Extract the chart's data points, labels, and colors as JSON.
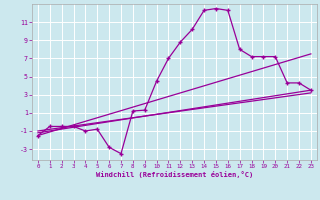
{
  "xlabel": "Windchill (Refroidissement éolien,°C)",
  "bg_color": "#cce8ee",
  "line_color": "#990099",
  "xlim": [
    -0.5,
    23.5
  ],
  "ylim": [
    -4.2,
    13.0
  ],
  "yticks": [
    -3,
    -1,
    1,
    3,
    5,
    7,
    9,
    11
  ],
  "xticks": [
    0,
    1,
    2,
    3,
    4,
    5,
    6,
    7,
    8,
    9,
    10,
    11,
    12,
    13,
    14,
    15,
    16,
    17,
    18,
    19,
    20,
    21,
    22,
    23
  ],
  "main_x": [
    0,
    1,
    2,
    3,
    4,
    5,
    6,
    7,
    8,
    9,
    10,
    11,
    12,
    13,
    14,
    15,
    16,
    17,
    18,
    19,
    20,
    21,
    22,
    23
  ],
  "main_y": [
    -1.5,
    -0.5,
    -0.5,
    -0.5,
    -1.0,
    -0.8,
    -2.8,
    -3.5,
    1.2,
    1.3,
    4.5,
    7.0,
    8.8,
    10.2,
    12.3,
    12.5,
    12.3,
    8.0,
    7.2,
    7.2,
    7.2,
    4.3,
    4.3,
    3.5
  ],
  "line2_x": [
    0,
    23
  ],
  "line2_y": [
    -1.5,
    7.5
  ],
  "line3_x": [
    0,
    23
  ],
  "line3_y": [
    -1.2,
    3.5
  ],
  "line4_x": [
    0,
    23
  ],
  "line4_y": [
    -1.0,
    3.2
  ]
}
